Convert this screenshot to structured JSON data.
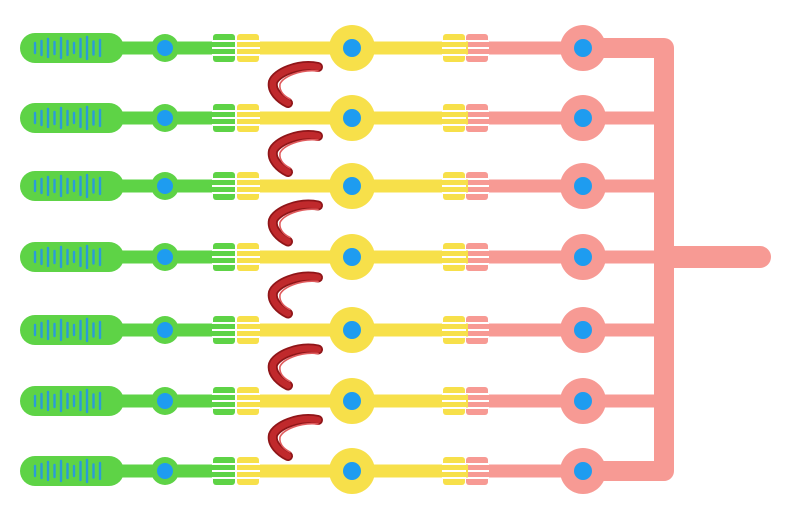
{
  "diagram": {
    "unit_count": 7,
    "connector_count": 6,
    "colors": {
      "background": "#ffffff",
      "segment_1": "#5ed346",
      "segment_2": "#f7e04a",
      "segment_3": "#f79a94",
      "node": "#1e9cf0",
      "ticks": "#2a9bd9",
      "connector": "#c0292c",
      "connector_dark": "#8f1518"
    },
    "icons": {
      "node": "circle-node-icon",
      "junction": "comb-junction-icon",
      "connector": "curved-ribbon-icon",
      "bus": "bus-line-icon"
    }
  }
}
